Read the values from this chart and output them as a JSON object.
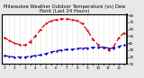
{
  "title": "Milwaukee Weather Outdoor Temperature (vs) Dew Point (Last 24 Hours)",
  "background_color": "#e8e8e8",
  "plot_bg_color": "#ffffff",
  "temp_color": "#dd0000",
  "dew_color": "#0000cc",
  "temp_values": [
    48,
    44,
    40,
    38,
    37,
    42,
    50,
    60,
    68,
    72,
    74,
    75,
    75,
    74,
    72,
    68,
    58,
    46,
    38,
    34,
    30,
    35,
    48,
    55
  ],
  "dew_values": [
    22,
    21,
    20,
    20,
    20,
    21,
    22,
    23,
    25,
    27,
    29,
    30,
    31,
    31,
    32,
    33,
    33,
    34,
    34,
    34,
    33,
    33,
    35,
    38
  ],
  "x_values": [
    0,
    1,
    2,
    3,
    4,
    5,
    6,
    7,
    8,
    9,
    10,
    11,
    12,
    13,
    14,
    15,
    16,
    17,
    18,
    19,
    20,
    21,
    22,
    23
  ],
  "ylim": [
    10,
    82
  ],
  "grid_color": "#bbbbbb",
  "title_fontsize": 3.8,
  "tick_fontsize": 3.0,
  "line_width": 0.9,
  "marker_size": 1.5,
  "x_tick_labels": [
    "1",
    "",
    "2",
    "",
    "3",
    "",
    "4",
    "",
    "5",
    "",
    "6",
    "",
    "7",
    "",
    "8",
    "",
    "9",
    "",
    "10",
    "",
    "11",
    "",
    "12",
    ""
  ]
}
